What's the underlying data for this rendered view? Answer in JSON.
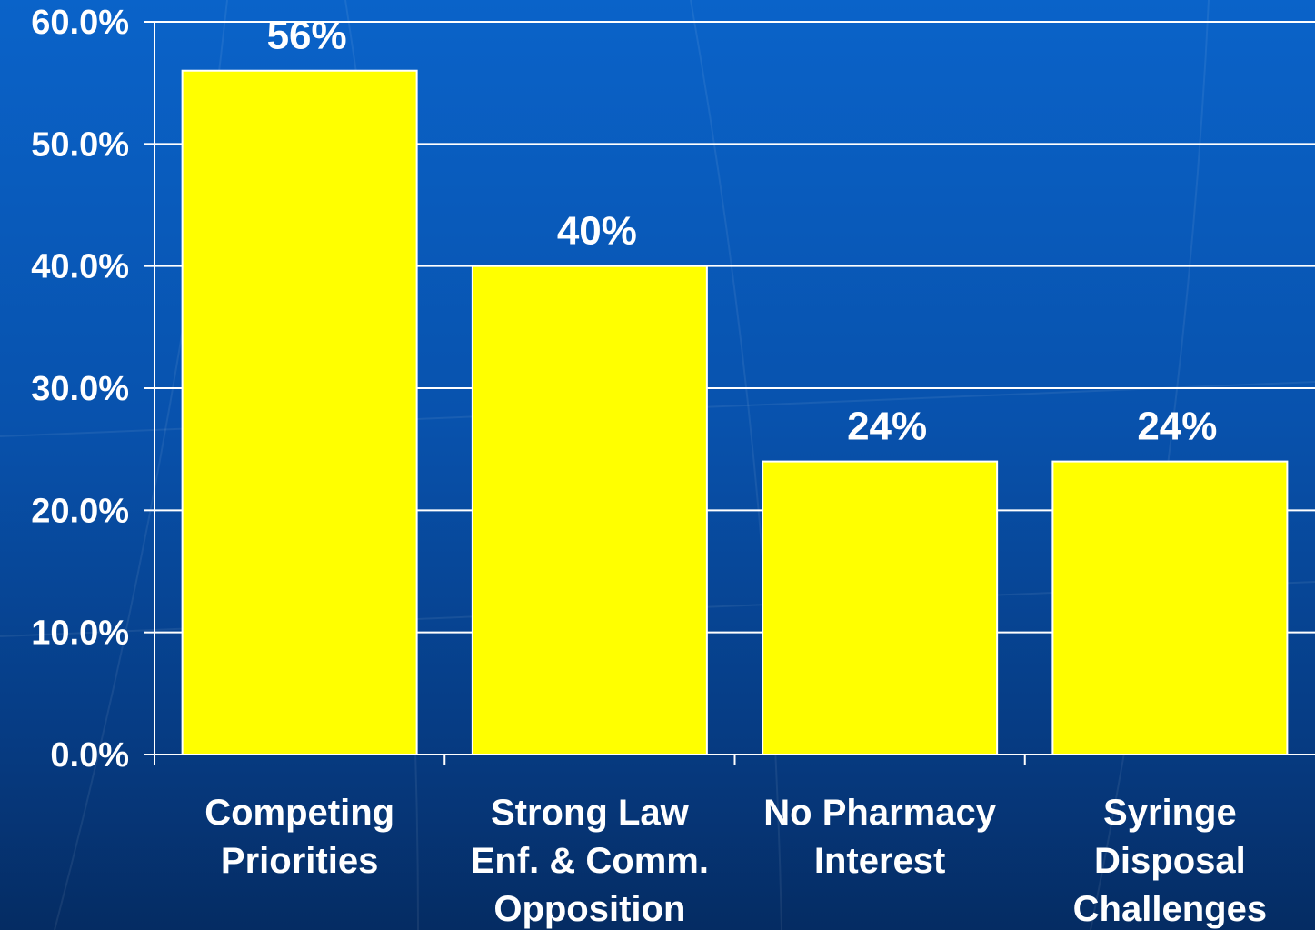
{
  "chart_data": {
    "type": "bar",
    "categories": [
      [
        "Competing",
        "Priorities"
      ],
      [
        "Strong Law",
        "Enf. & Comm.",
        "Opposition"
      ],
      [
        "No Pharmacy",
        "Interest"
      ],
      [
        "Syringe",
        "Disposal",
        "Challenges"
      ]
    ],
    "values": [
      56,
      40,
      24,
      24
    ],
    "data_labels": [
      "56%",
      "40%",
      "24%",
      "24%"
    ],
    "y_ticks": [
      0,
      10,
      20,
      30,
      40,
      50,
      60
    ],
    "y_tick_labels": [
      "0.0%",
      "10.0%",
      "20.0%",
      "30.0%",
      "40.0%",
      "50.0%",
      "60.0%"
    ],
    "ylim": [
      0,
      60
    ],
    "grid": true,
    "bar_color": "#ffff00",
    "bar_edge_color": "#ffffff",
    "axis_color": "#ffffff",
    "background_color": "#0852ad"
  }
}
